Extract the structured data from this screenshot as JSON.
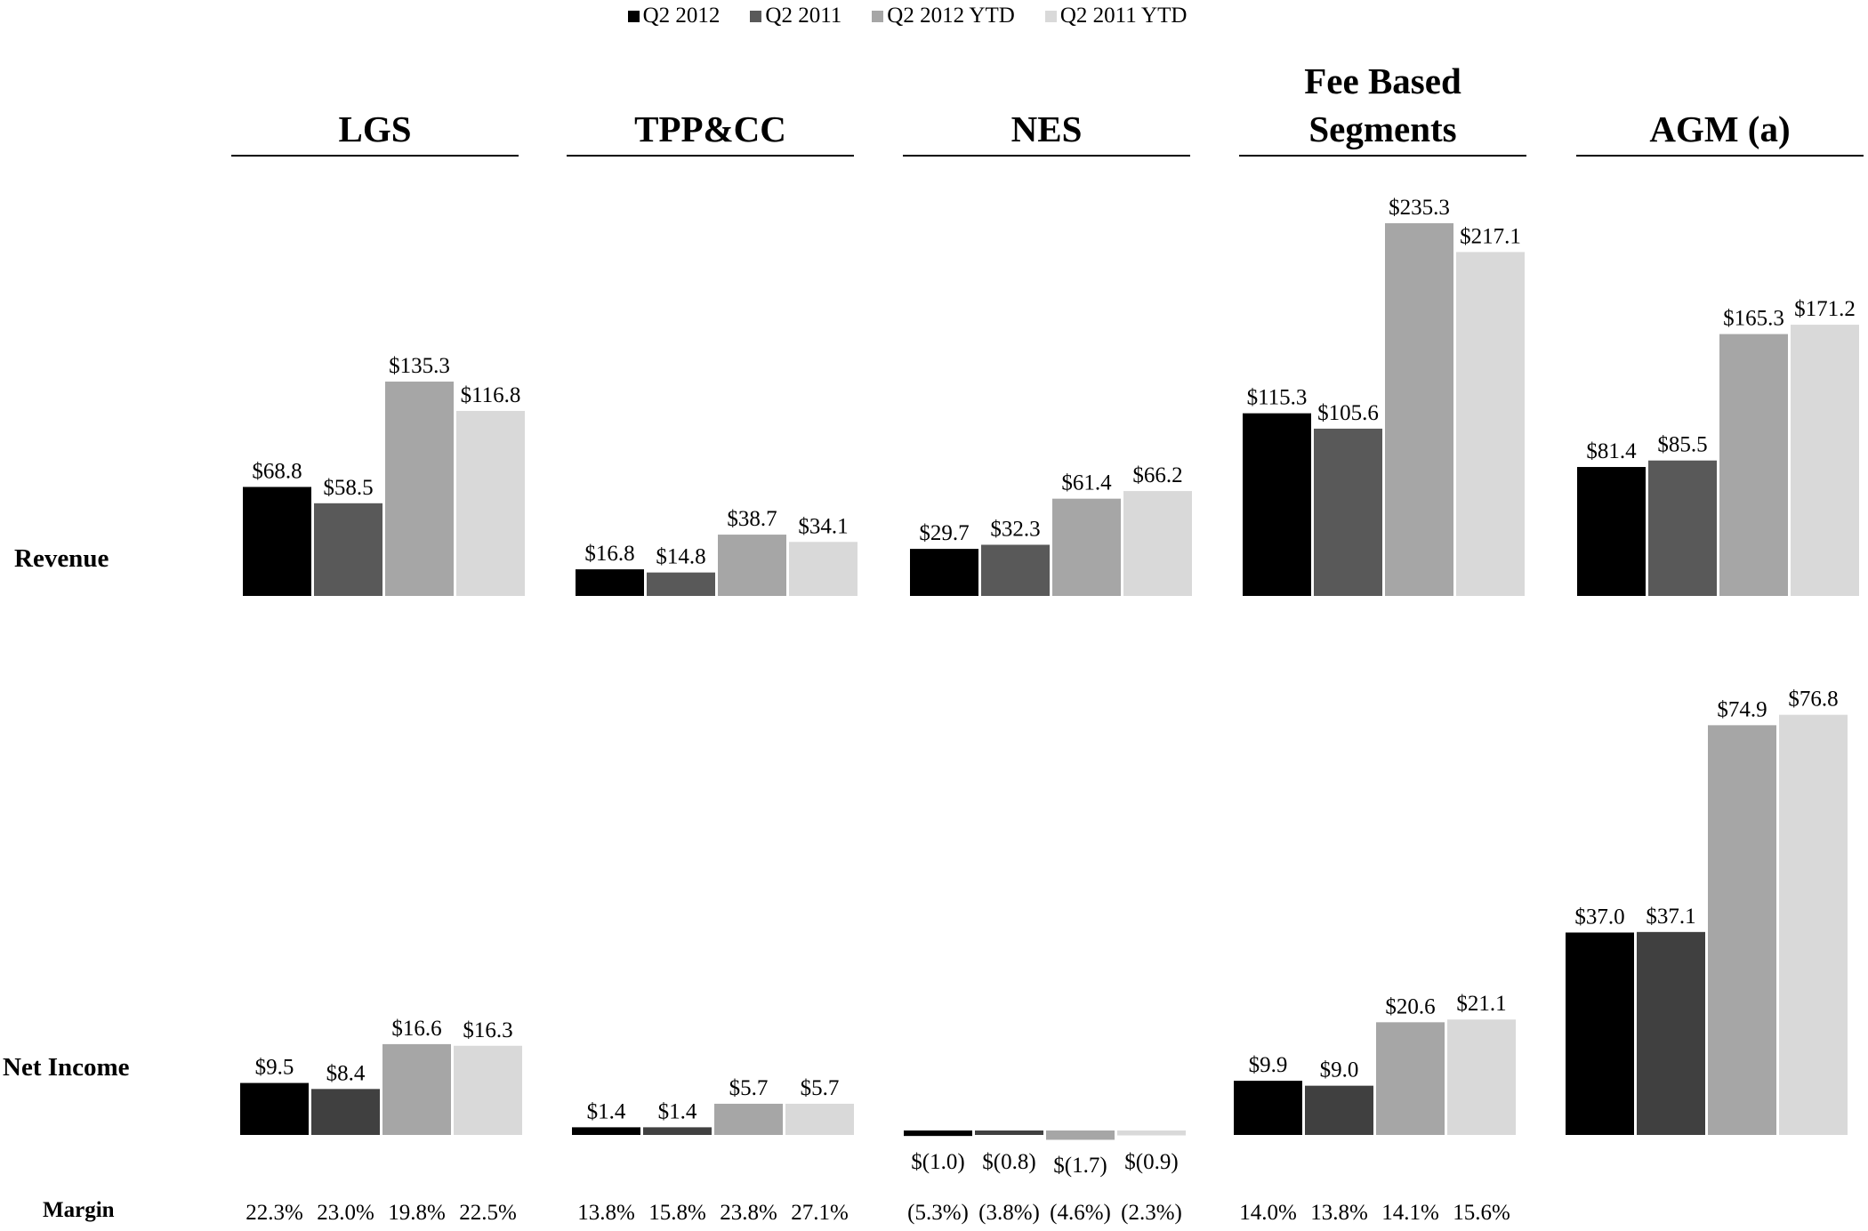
{
  "legend": [
    {
      "label": "Q2 2012",
      "color": "#000000"
    },
    {
      "label": "Q2 2011",
      "color": "#595959"
    },
    {
      "label": "Q2 2012 YTD",
      "color": "#a6a6a6"
    },
    {
      "label": "Q2 2011 YTD",
      "color": "#d9d9d9"
    }
  ],
  "row_labels": {
    "revenue": "Revenue",
    "net_income": "Net Income",
    "margin": "Margin"
  },
  "chart_data": {
    "type": "bar",
    "title": "",
    "series_names": [
      "Q2 2012",
      "Q2 2011",
      "Q2 2012 YTD",
      "Q2 2011 YTD"
    ],
    "net_income_colors": [
      "#000000",
      "#404040",
      "#a6a6a6",
      "#d9d9d9"
    ],
    "segments": [
      {
        "header": [
          "LGS"
        ],
        "revenue": [
          68.8,
          58.5,
          135.3,
          116.8
        ],
        "revenue_labels": [
          "$68.8",
          "$58.5",
          "$135.3",
          "$116.8"
        ],
        "net_income": [
          9.5,
          8.4,
          16.6,
          16.3
        ],
        "net_income_labels": [
          "$9.5",
          "$8.4",
          "$16.6",
          "$16.3"
        ],
        "margin": [
          "22.3%",
          "23.0%",
          "19.8%",
          "22.5%"
        ]
      },
      {
        "header": [
          "TPP&CC"
        ],
        "revenue": [
          16.8,
          14.8,
          38.7,
          34.1
        ],
        "revenue_labels": [
          "$16.8",
          "$14.8",
          "$38.7",
          "$34.1"
        ],
        "net_income": [
          1.4,
          1.4,
          5.7,
          5.7
        ],
        "net_income_labels": [
          "$1.4",
          "$1.4",
          "$5.7",
          "$5.7"
        ],
        "margin": [
          "13.8%",
          "15.8%",
          "23.8%",
          "27.1%"
        ]
      },
      {
        "header": [
          "NES"
        ],
        "revenue": [
          29.7,
          32.3,
          61.4,
          66.2
        ],
        "revenue_labels": [
          "$29.7",
          "$32.3",
          "$61.4",
          "$66.2"
        ],
        "net_income": [
          -1.0,
          -0.8,
          -1.7,
          -0.9
        ],
        "net_income_labels": [
          "$(1.0)",
          "$(0.8)",
          "$(1.7)",
          "$(0.9)"
        ],
        "margin": [
          "(5.3%)",
          "(3.8%)",
          "(4.6%)",
          "(2.3%)"
        ]
      },
      {
        "header": [
          "Fee Based",
          "Segments"
        ],
        "revenue": [
          115.3,
          105.6,
          235.3,
          217.1
        ],
        "revenue_labels": [
          "$115.3",
          "$105.6",
          "$235.3",
          "$217.1"
        ],
        "net_income": [
          9.9,
          9.0,
          20.6,
          21.1
        ],
        "net_income_labels": [
          "$9.9",
          "$9.0",
          "$20.6",
          "$21.1"
        ],
        "margin": [
          "14.0%",
          "13.8%",
          "14.1%",
          "15.6%"
        ]
      },
      {
        "header": [
          "AGM (a)"
        ],
        "revenue": [
          81.4,
          85.5,
          165.3,
          171.2
        ],
        "revenue_labels": [
          "$81.4",
          "$85.5",
          "$165.3",
          "$171.2"
        ],
        "net_income": [
          37.0,
          37.1,
          74.9,
          76.8
        ],
        "net_income_labels": [
          "$37.0",
          "$37.1",
          "$74.9",
          "$76.8"
        ],
        "margin": []
      }
    ]
  }
}
